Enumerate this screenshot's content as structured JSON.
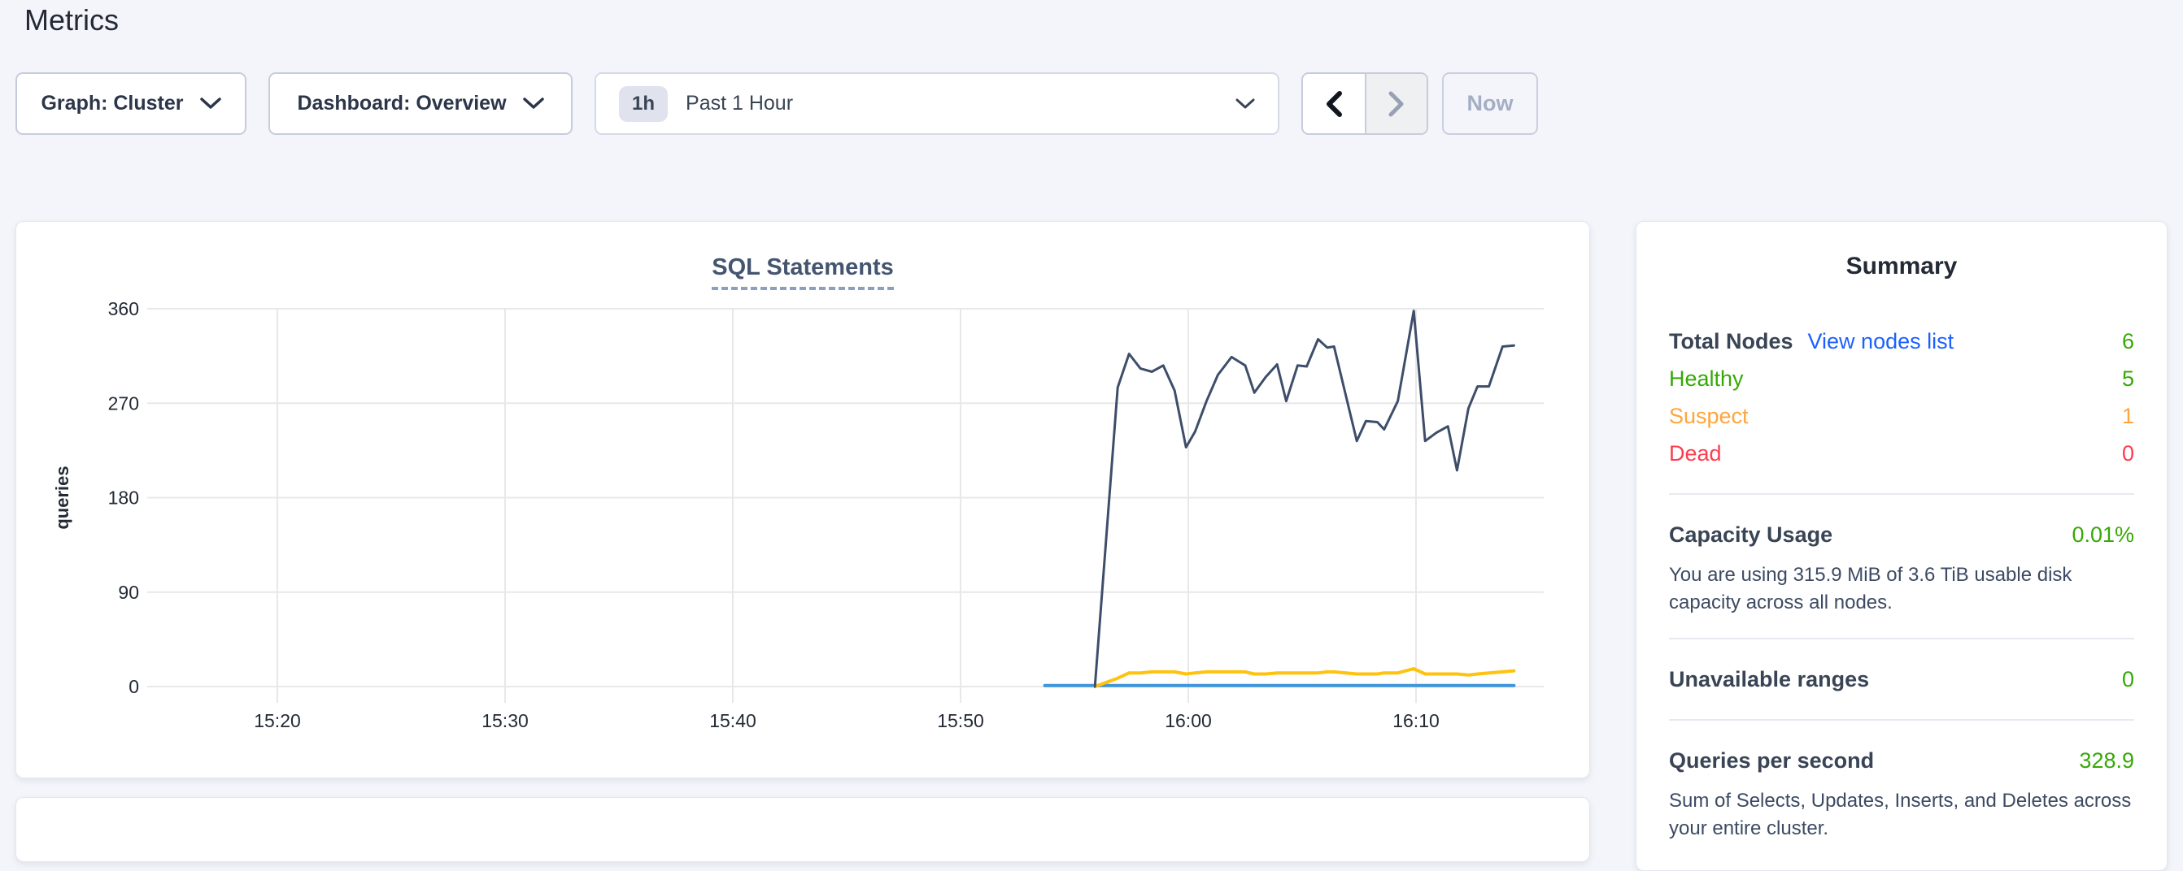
{
  "page": {
    "title": "Metrics",
    "background_color": "#f4f5fa"
  },
  "toolbar": {
    "graph_dropdown": {
      "label": "Graph: Cluster"
    },
    "dashboard_dropdown": {
      "label": "Dashboard: Overview"
    },
    "time_selector": {
      "badge": "1h",
      "label": "Past 1 Hour"
    },
    "prev_button": {
      "enabled": true
    },
    "next_button": {
      "enabled": false
    },
    "now_button": {
      "label": "Now",
      "enabled": false
    }
  },
  "chart_data": {
    "type": "line",
    "title": "SQL Statements",
    "xlabel": "",
    "ylabel": "queries",
    "ylim": [
      0,
      360
    ],
    "y_ticks": [
      0,
      90,
      180,
      270,
      360
    ],
    "x_ticks": [
      {
        "label": "15:20",
        "min": 0
      },
      {
        "label": "15:30",
        "min": 10
      },
      {
        "label": "15:40",
        "min": 20
      },
      {
        "label": "15:50",
        "min": 30
      },
      {
        "label": "16:00",
        "min": 40
      },
      {
        "label": "16:10",
        "min": 50
      }
    ],
    "x_unit": "minutes after 15:20",
    "grid": true,
    "legend_visible": false,
    "series": [
      {
        "name": "series-blue",
        "color": "#3e95db",
        "stroke_width": 4,
        "points": [
          [
            33.7,
            1
          ],
          [
            54.3,
            1
          ]
        ]
      },
      {
        "name": "series-yellow",
        "color": "#ffc20e",
        "stroke_width": 4,
        "points": [
          [
            35.9,
            0
          ],
          [
            36.9,
            8
          ],
          [
            37.4,
            13
          ],
          [
            37.9,
            13
          ],
          [
            38.4,
            14
          ],
          [
            38.9,
            14
          ],
          [
            39.4,
            14
          ],
          [
            39.9,
            12
          ],
          [
            40.3,
            13
          ],
          [
            40.8,
            14
          ],
          [
            41.3,
            14
          ],
          [
            41.9,
            14
          ],
          [
            42.5,
            14
          ],
          [
            42.9,
            12
          ],
          [
            43.4,
            12
          ],
          [
            43.9,
            13
          ],
          [
            44.3,
            13
          ],
          [
            44.8,
            13
          ],
          [
            45.2,
            13
          ],
          [
            45.7,
            13
          ],
          [
            46.1,
            14
          ],
          [
            46.4,
            14
          ],
          [
            47.4,
            12
          ],
          [
            47.8,
            12
          ],
          [
            48.3,
            12
          ],
          [
            48.6,
            13
          ],
          [
            49.2,
            13
          ],
          [
            49.9,
            17
          ],
          [
            50.4,
            12
          ],
          [
            50.9,
            12
          ],
          [
            51.4,
            12
          ],
          [
            51.8,
            12
          ],
          [
            52.3,
            11
          ],
          [
            52.7,
            12
          ],
          [
            53.2,
            13
          ],
          [
            53.8,
            14
          ],
          [
            54.3,
            15
          ]
        ]
      },
      {
        "name": "series-navy",
        "color": "#3e4e6a",
        "stroke_width": 3,
        "points": [
          [
            35.9,
            0
          ],
          [
            36.9,
            285
          ],
          [
            37.4,
            317
          ],
          [
            37.9,
            303
          ],
          [
            38.4,
            300
          ],
          [
            38.9,
            306
          ],
          [
            39.4,
            282
          ],
          [
            39.9,
            228
          ],
          [
            40.3,
            243
          ],
          [
            40.8,
            272
          ],
          [
            41.3,
            297
          ],
          [
            41.9,
            314
          ],
          [
            42.5,
            306
          ],
          [
            42.9,
            280
          ],
          [
            43.4,
            295
          ],
          [
            43.9,
            307
          ],
          [
            44.3,
            272
          ],
          [
            44.8,
            306
          ],
          [
            45.2,
            305
          ],
          [
            45.7,
            331
          ],
          [
            46.1,
            323
          ],
          [
            46.4,
            324
          ],
          [
            47.4,
            234
          ],
          [
            47.8,
            253
          ],
          [
            48.3,
            252
          ],
          [
            48.6,
            245
          ],
          [
            49.2,
            272
          ],
          [
            49.9,
            358
          ],
          [
            50.4,
            234
          ],
          [
            50.9,
            242
          ],
          [
            51.4,
            248
          ],
          [
            51.8,
            206
          ],
          [
            52.3,
            265
          ],
          [
            52.7,
            286
          ],
          [
            53.2,
            286
          ],
          [
            53.8,
            324
          ],
          [
            54.3,
            325
          ]
        ]
      }
    ]
  },
  "summary": {
    "title": "Summary",
    "total_nodes": {
      "label": "Total Nodes",
      "link_label": "View nodes list",
      "value": "6",
      "value_color": "#37a806"
    },
    "status_rows": [
      {
        "label": "Healthy",
        "value": "5",
        "color": "#37a806"
      },
      {
        "label": "Suspect",
        "value": "1",
        "color": "#ffa53b"
      },
      {
        "label": "Dead",
        "value": "0",
        "color": "#ff3b4e"
      }
    ],
    "capacity": {
      "label": "Capacity Usage",
      "value": "0.01%",
      "value_color": "#37a806",
      "description": "You are using 315.9 MiB of 3.6 TiB usable disk capacity across all nodes."
    },
    "unavailable_ranges": {
      "label": "Unavailable ranges",
      "value": "0",
      "value_color": "#37a806"
    },
    "qps": {
      "label": "Queries per second",
      "value": "328.9",
      "value_color": "#37a806",
      "description": "Sum of Selects, Updates, Inserts, and Deletes across your entire cluster."
    }
  }
}
